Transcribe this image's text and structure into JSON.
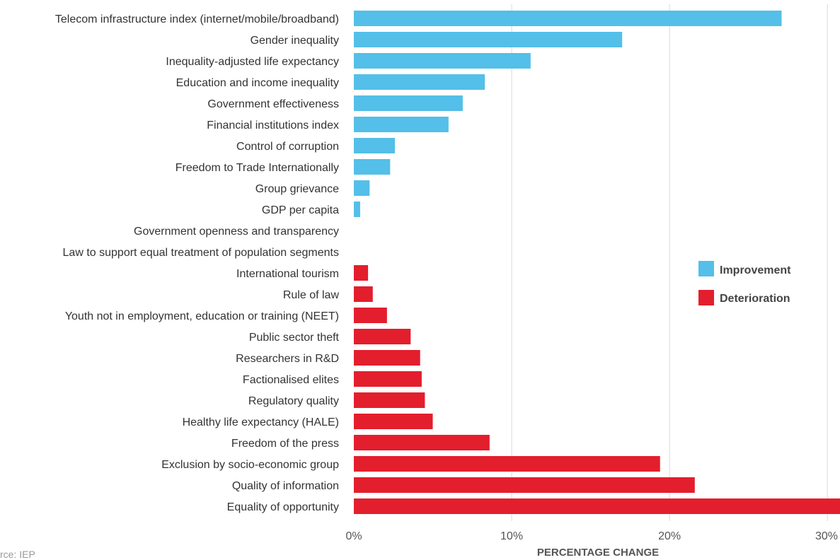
{
  "colors": {
    "improvement": "#54BFE8",
    "deterioration": "#E31E2D",
    "grid": "#d9d9d9"
  },
  "source_text": "rce: IEP",
  "chart_data": {
    "type": "bar",
    "orientation": "horizontal",
    "xlabel": "PERCENTAGE CHANGE",
    "xlim": [
      0,
      30.8
    ],
    "xticks": [
      0,
      10,
      20,
      30
    ],
    "xtick_labels": [
      "0%",
      "10%",
      "20%",
      "30%"
    ],
    "grid": true,
    "legend": {
      "placement": "right",
      "entries": [
        "Improvement",
        "Deterioration"
      ]
    },
    "bars": [
      {
        "label": "Telecom infrastructure index (internet/mobile/broadband)",
        "value": 27.1,
        "type": "improvement"
      },
      {
        "label": "Gender inequality",
        "value": 17.0,
        "type": "improvement"
      },
      {
        "label": "Inequality-adjusted life expectancy",
        "value": 11.2,
        "type": "improvement"
      },
      {
        "label": "Education and income inequality",
        "value": 8.3,
        "type": "improvement"
      },
      {
        "label": "Government effectiveness",
        "value": 6.9,
        "type": "improvement"
      },
      {
        "label": "Financial institutions index",
        "value": 6.0,
        "type": "improvement"
      },
      {
        "label": "Control of corruption",
        "value": 2.6,
        "type": "improvement"
      },
      {
        "label": "Freedom to Trade Internationally",
        "value": 2.3,
        "type": "improvement"
      },
      {
        "label": "Group grievance",
        "value": 1.0,
        "type": "improvement"
      },
      {
        "label": "GDP per capita",
        "value": 0.4,
        "type": "improvement"
      },
      {
        "label": "Government openness and transparency",
        "value": 0,
        "type": "improvement"
      },
      {
        "label": "Law to support equal treatment of population segments",
        "value": 0,
        "type": "deterioration"
      },
      {
        "label": "International tourism",
        "value": 0.9,
        "type": "deterioration"
      },
      {
        "label": "Rule of law",
        "value": 1.2,
        "type": "deterioration"
      },
      {
        "label": "Youth not in employment, education or training (NEET)",
        "value": 2.1,
        "type": "deterioration"
      },
      {
        "label": "Public sector theft",
        "value": 3.6,
        "type": "deterioration"
      },
      {
        "label": "Researchers in R&D",
        "value": 4.2,
        "type": "deterioration"
      },
      {
        "label": "Factionalised elites",
        "value": 4.3,
        "type": "deterioration"
      },
      {
        "label": "Regulatory quality",
        "value": 4.5,
        "type": "deterioration"
      },
      {
        "label": "Healthy life expectancy (HALE)",
        "value": 5.0,
        "type": "deterioration"
      },
      {
        "label": "Freedom of the press",
        "value": 8.6,
        "type": "deterioration"
      },
      {
        "label": "Exclusion by socio-economic group",
        "value": 19.4,
        "type": "deterioration"
      },
      {
        "label": "Quality of information",
        "value": 21.6,
        "type": "deterioration"
      },
      {
        "label": "Equality of opportunity",
        "value": 30.8,
        "type": "deterioration"
      }
    ]
  }
}
